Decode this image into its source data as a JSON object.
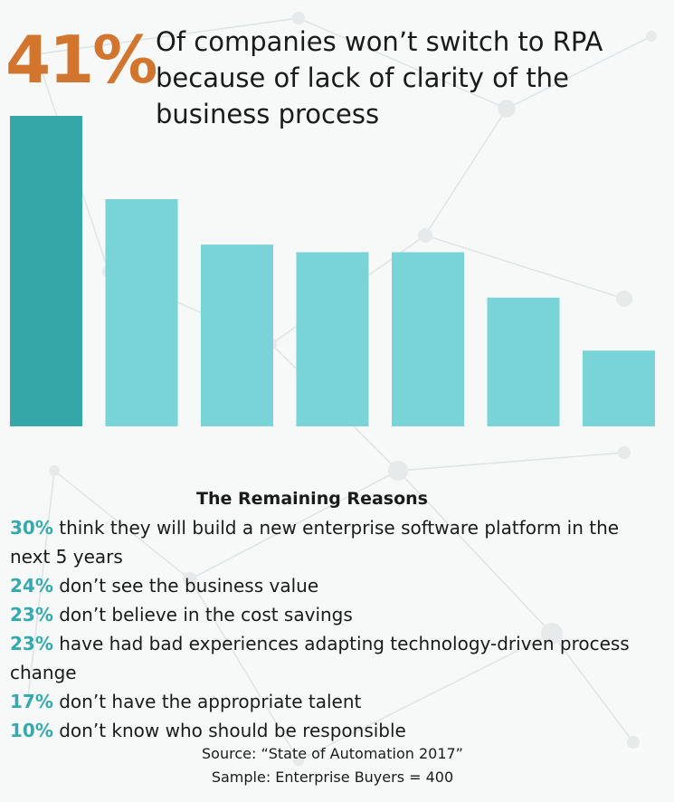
{
  "headline": {
    "percent": "41%",
    "text": "Of companies won’t switch to RPA because of lack of clarity of the business process"
  },
  "remaining": {
    "title": "The Remaining Reasons",
    "items": [
      {
        "pct": "30%",
        "text": " think they will build a new enterprise software platform in the next 5 years"
      },
      {
        "pct": "24%",
        "text": " don’t see the business value"
      },
      {
        "pct": "23%",
        "text": " don’t believe in the cost savings"
      },
      {
        "pct": "23%",
        "text": " have had bad experiences adapting technology-driven process change"
      },
      {
        "pct": "17%",
        "text": " don’t have the appropriate talent"
      },
      {
        "pct": "10%",
        "text": " don’t know who should be responsible"
      }
    ]
  },
  "source": {
    "line1": "Source: “State of Automation 2017”",
    "line2": "Sample: Enterprise Buyers = 400"
  },
  "colors": {
    "highlight_bar": "#35a7a9",
    "other_bars": "#79d4d7",
    "headline_percent": "#d2762f",
    "reason_percent": "#36a9ae"
  },
  "chart_data": {
    "type": "bar",
    "categories": [
      "",
      "",
      "",
      "",
      "",
      "",
      ""
    ],
    "values": [
      41,
      30,
      24,
      23,
      23,
      17,
      10
    ],
    "ylim": [
      0,
      41
    ],
    "grid": false,
    "highlight_index": 0
  }
}
